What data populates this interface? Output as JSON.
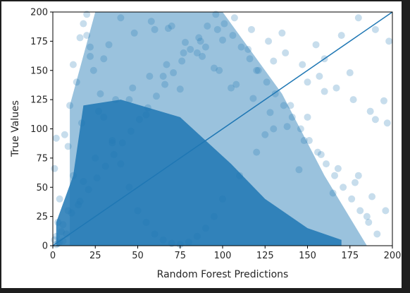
{
  "chart_data": {
    "type": "scatter",
    "title": "",
    "xlabel": "Random Forest Predictions",
    "ylabel": "True Values",
    "xlim": [
      0,
      200
    ],
    "ylim": [
      0,
      200
    ],
    "xticks": [
      "0",
      "25",
      "50",
      "75",
      "100",
      "125",
      "150",
      "175",
      "200"
    ],
    "yticks": [
      "0",
      "25",
      "50",
      "75",
      "100",
      "125",
      "150",
      "175",
      "200"
    ],
    "grid": false,
    "legend": "none",
    "reference_line": {
      "from": [
        0,
        0
      ],
      "to": [
        200,
        200
      ]
    },
    "colors": {
      "point": "#1f77b4",
      "line": "#1f77b4",
      "plot_background": "#ffffff",
      "frame": "#000000",
      "figure_background": "#ffffff",
      "outer_background": "#1e1e1e"
    },
    "point_alpha": 0.25,
    "series": [
      {
        "values_x": [
          2,
          4,
          1,
          3,
          6,
          2,
          5,
          8,
          3,
          4,
          1,
          7,
          9,
          12,
          14,
          16,
          18,
          20,
          22,
          24,
          28,
          30,
          35,
          40,
          45,
          50,
          55,
          60,
          65,
          70,
          75,
          80,
          85,
          90,
          95,
          100,
          110,
          120,
          130,
          140,
          150,
          160,
          170,
          180,
          190,
          198,
          2,
          10,
          30,
          60,
          90,
          120,
          150,
          180,
          15,
          25,
          45,
          65,
          85,
          105,
          125,
          145,
          165,
          185,
          20,
          40,
          70,
          100,
          130,
          160,
          190,
          18,
          35,
          55,
          75,
          95,
          115,
          135,
          155,
          175,
          195,
          12,
          22,
          33,
          48,
          58,
          68,
          78,
          88,
          98,
          108,
          118,
          128,
          138,
          148,
          158,
          168,
          178,
          188,
          196,
          6,
          11,
          16,
          21,
          26,
          31,
          36,
          41,
          46,
          51,
          56,
          61,
          66,
          71,
          76,
          81,
          86,
          91,
          96,
          101,
          106,
          111,
          116,
          121,
          126,
          131,
          136,
          141,
          146,
          151,
          156,
          161,
          166,
          171,
          176,
          181,
          186,
          191,
          9,
          17,
          27,
          37,
          47,
          57,
          67,
          77,
          87,
          97,
          107,
          117,
          127,
          137,
          147,
          157,
          167,
          177,
          187,
          197
        ],
        "values_y": [
          1,
          3,
          5,
          2,
          4,
          8,
          12,
          10,
          20,
          40,
          66,
          95,
          30,
          60,
          140,
          178,
          190,
          198,
          170,
          150,
          130,
          110,
          90,
          70,
          50,
          30,
          20,
          10,
          5,
          2,
          1,
          3,
          8,
          15,
          25,
          40,
          60,
          80,
          100,
          120,
          140,
          160,
          180,
          195,
          185,
          175,
          92,
          120,
          160,
          185,
          170,
          150,
          110,
          60,
          35,
          75,
          125,
          145,
          165,
          135,
          95,
          65,
          45,
          25,
          180,
          195,
          188,
          176,
          158,
          132,
          108,
          55,
          88,
          112,
          134,
          152,
          168,
          182,
          172,
          148,
          124,
          155,
          162,
          172,
          182,
          192,
          186,
          174,
          162,
          150,
          138,
          126,
          114,
          102,
          90,
          78,
          66,
          54,
          42,
          30,
          18,
          28,
          38,
          48,
          58,
          68,
          78,
          88,
          98,
          108,
          118,
          128,
          138,
          148,
          158,
          168,
          178,
          188,
          198,
          190,
          180,
          170,
          160,
          150,
          140,
          130,
          120,
          110,
          100,
          90,
          80,
          70,
          60,
          50,
          40,
          30,
          20,
          10,
          85,
          105,
          115,
          125,
          135,
          145,
          155,
          165,
          175,
          185,
          195,
          185,
          175,
          165,
          155,
          145,
          135,
          125,
          115,
          105
        ]
      }
    ]
  }
}
